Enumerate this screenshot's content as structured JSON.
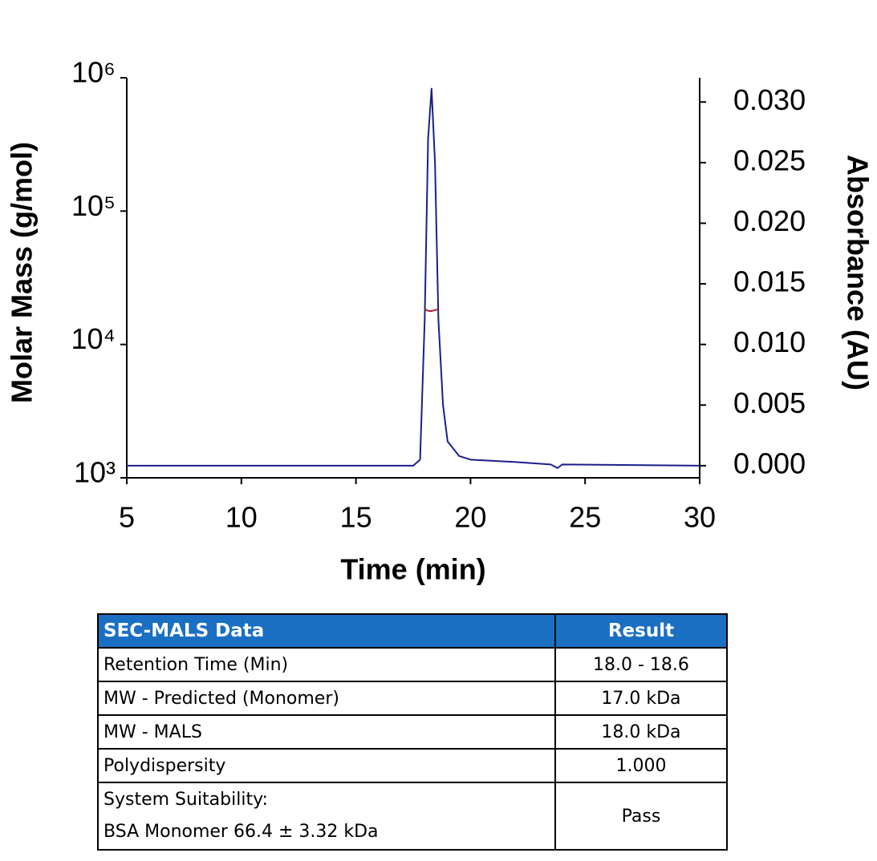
{
  "chart_data": {
    "type": "line",
    "xlabel": "Time (min)",
    "ylabel": "Molar Mass (g/mol)",
    "y2label": "Absorbance (AU)",
    "xlim": [
      5,
      30
    ],
    "xticks": [
      5,
      10,
      15,
      20,
      25,
      30
    ],
    "ylim": [
      1000,
      1000000
    ],
    "yscale": "log",
    "yticks": [
      {
        "value": 1000,
        "label": "10³"
      },
      {
        "value": 10000,
        "label": "10⁴"
      },
      {
        "value": 100000,
        "label": "10⁵"
      },
      {
        "value": 1000000,
        "label": "10⁶"
      }
    ],
    "y2lim": [
      -0.001,
      0.032
    ],
    "y2ticks": [
      {
        "value": 0,
        "label": "0.000"
      },
      {
        "value": 0.005,
        "label": "0.005"
      },
      {
        "value": 0.01,
        "label": "0.010"
      },
      {
        "value": 0.015,
        "label": "0.015"
      },
      {
        "value": 0.02,
        "label": "0.020"
      },
      {
        "value": 0.025,
        "label": "0.025"
      },
      {
        "value": 0.03,
        "label": "0.030"
      }
    ],
    "series": [
      {
        "color": "#1a1f8c",
        "axis": "y2",
        "x": [
          5,
          17.5,
          17.8,
          18.0,
          18.15,
          18.3,
          18.45,
          18.6,
          18.8,
          19.0,
          19.5,
          20,
          22,
          23.5,
          23.8,
          24,
          30
        ],
        "values": [
          0,
          0,
          0.0005,
          0.012,
          0.027,
          0.0311,
          0.025,
          0.012,
          0.005,
          0.002,
          0.0008,
          0.0005,
          0.0003,
          0.0001,
          -0.0002,
          0.0001,
          0
        ]
      },
      {
        "color": "#b0202a",
        "x": [
          18.0,
          18.1,
          18.2,
          18.3,
          18.4,
          18.5,
          18.6
        ],
        "values": [
          18500,
          18000,
          17800,
          17800,
          18000,
          18200,
          18300
        ]
      }
    ]
  },
  "table": {
    "header": [
      "SEC-MALS Data",
      "Result"
    ],
    "rows": [
      [
        "Retention Time (Min)",
        "18.0 - 18.6"
      ],
      [
        "MW - Predicted (Monomer)",
        "17.0 kDa"
      ],
      [
        "MW - MALS",
        "18.0 kDa"
      ],
      [
        "Polydispersity",
        "1.000"
      ],
      [
        [
          "System Suitability:",
          "BSA Monomer 66.4 ± 3.32 kDa"
        ],
        "Pass"
      ]
    ]
  }
}
